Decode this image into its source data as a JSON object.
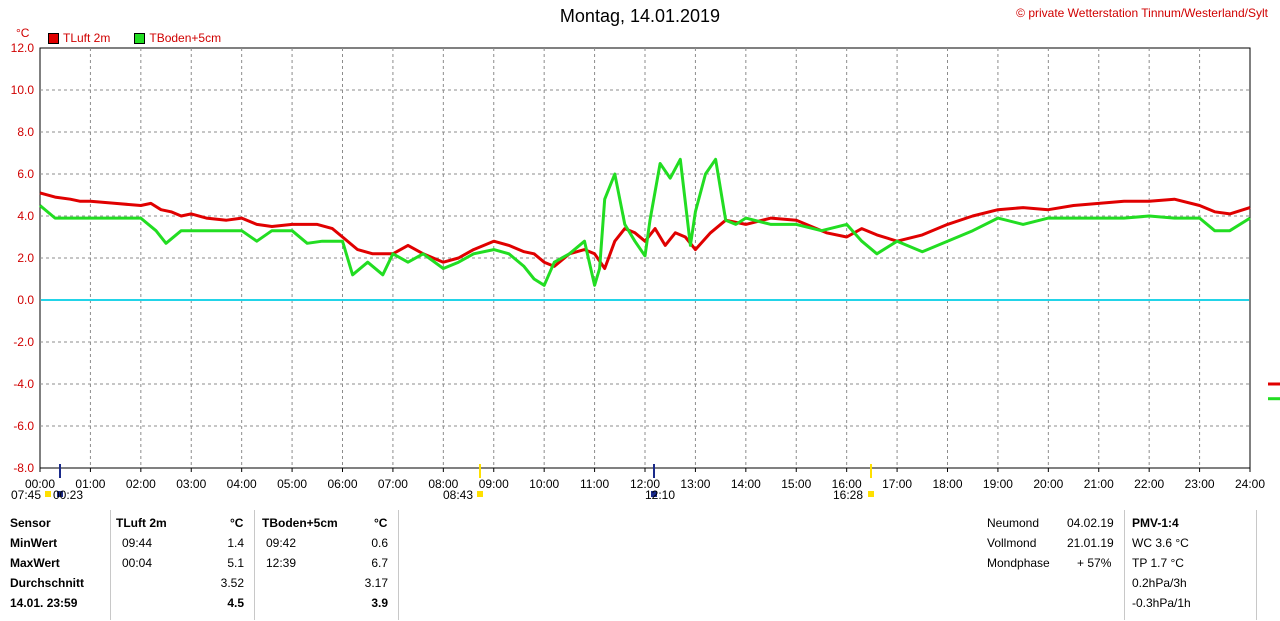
{
  "title": "Montag, 14.01.2019",
  "copyright_symbol": "©",
  "copyright": "private Wetterstation Tinnum/Westerland/Sylt",
  "unit_label": "°C",
  "colors": {
    "tluft": "#e00000",
    "tboden": "#22dd22",
    "zero": "#22d4e8",
    "grid": "#8c8c8c",
    "label": "#d00000"
  },
  "chart_data": {
    "type": "line",
    "xlim": [
      0,
      24
    ],
    "ylim": [
      -8,
      12
    ],
    "grid": true,
    "x_tick_labels": [
      "00:00",
      "01:00",
      "02:00",
      "03:00",
      "04:00",
      "05:00",
      "06:00",
      "07:00",
      "08:00",
      "09:00",
      "10:00",
      "11:00",
      "12:00",
      "13:00",
      "14:00",
      "15:00",
      "16:00",
      "17:00",
      "18:00",
      "19:00",
      "20:00",
      "21:00",
      "22:00",
      "23:00",
      "24:00"
    ],
    "y_tick_labels": [
      "12.0",
      "10.0",
      "8.0",
      "6.0",
      "4.0",
      "2.0",
      "0.0",
      "-2.0",
      "-4.0",
      "-6.0",
      "-8.0"
    ],
    "zero_line": 0.0,
    "series": [
      {
        "name": "TLuft 2m",
        "color": "#e00000",
        "x": [
          0,
          0.3,
          0.6,
          0.8,
          1.0,
          1.5,
          2.0,
          2.2,
          2.4,
          2.6,
          2.8,
          3.0,
          3.3,
          3.7,
          4.0,
          4.3,
          4.6,
          5.0,
          5.5,
          5.8,
          6.0,
          6.3,
          6.6,
          7.0,
          7.3,
          7.6,
          8.0,
          8.3,
          8.6,
          9.0,
          9.3,
          9.6,
          9.8,
          10.0,
          10.2,
          10.5,
          10.8,
          11.0,
          11.2,
          11.4,
          11.6,
          11.8,
          12.0,
          12.2,
          12.4,
          12.6,
          12.8,
          13.0,
          13.3,
          13.6,
          14.0,
          14.5,
          15.0,
          15.3,
          15.6,
          16.0,
          16.3,
          16.6,
          17.0,
          17.5,
          18.0,
          18.5,
          19.0,
          19.5,
          20.0,
          20.5,
          21.0,
          21.5,
          22.0,
          22.5,
          23.0,
          23.3,
          23.6,
          24.0
        ],
        "y": [
          5.1,
          4.9,
          4.8,
          4.7,
          4.7,
          4.6,
          4.5,
          4.6,
          4.3,
          4.2,
          4.0,
          4.1,
          3.9,
          3.8,
          3.9,
          3.6,
          3.5,
          3.6,
          3.6,
          3.4,
          3.0,
          2.4,
          2.2,
          2.2,
          2.6,
          2.2,
          1.8,
          2.0,
          2.4,
          2.8,
          2.6,
          2.3,
          2.2,
          1.8,
          1.6,
          2.2,
          2.4,
          2.2,
          1.5,
          2.8,
          3.4,
          3.2,
          2.8,
          3.4,
          2.6,
          3.2,
          3.0,
          2.4,
          3.2,
          3.8,
          3.6,
          3.9,
          3.8,
          3.5,
          3.2,
          3.0,
          3.4,
          3.1,
          2.8,
          3.1,
          3.6,
          4.0,
          4.3,
          4.4,
          4.3,
          4.5,
          4.6,
          4.7,
          4.7,
          4.8,
          4.5,
          4.2,
          4.1,
          4.4
        ]
      },
      {
        "name": "TBoden+5cm",
        "color": "#22dd22",
        "x": [
          0,
          0.3,
          0.6,
          1.0,
          1.5,
          2.0,
          2.3,
          2.5,
          2.8,
          3.0,
          3.5,
          4.0,
          4.3,
          4.6,
          5.0,
          5.3,
          5.6,
          6.0,
          6.2,
          6.5,
          6.8,
          7.0,
          7.3,
          7.6,
          8.0,
          8.3,
          8.6,
          9.0,
          9.3,
          9.6,
          9.8,
          10.0,
          10.2,
          10.5,
          10.8,
          11.0,
          11.1,
          11.2,
          11.4,
          11.6,
          11.8,
          12.0,
          12.1,
          12.3,
          12.5,
          12.7,
          12.9,
          13.0,
          13.2,
          13.4,
          13.6,
          13.8,
          14.0,
          14.5,
          15.0,
          15.5,
          16.0,
          16.3,
          16.6,
          17.0,
          17.5,
          18.0,
          18.5,
          19.0,
          19.5,
          20.0,
          20.5,
          21.0,
          21.5,
          22.0,
          22.5,
          23.0,
          23.3,
          23.6,
          24.0
        ],
        "y": [
          4.5,
          3.9,
          3.9,
          3.9,
          3.9,
          3.9,
          3.3,
          2.7,
          3.3,
          3.3,
          3.3,
          3.3,
          2.8,
          3.3,
          3.3,
          2.7,
          2.8,
          2.8,
          1.2,
          1.8,
          1.2,
          2.2,
          1.8,
          2.2,
          1.5,
          1.8,
          2.2,
          2.4,
          2.2,
          1.6,
          1.0,
          0.7,
          1.8,
          2.2,
          2.8,
          0.7,
          1.5,
          4.8,
          6.0,
          3.6,
          2.8,
          2.1,
          3.8,
          6.5,
          5.8,
          6.7,
          2.6,
          4.2,
          6.0,
          6.7,
          3.8,
          3.6,
          3.9,
          3.6,
          3.6,
          3.3,
          3.6,
          2.8,
          2.2,
          2.8,
          2.3,
          2.8,
          3.3,
          3.9,
          3.6,
          3.9,
          3.9,
          3.9,
          3.9,
          4.0,
          3.9,
          3.9,
          3.3,
          3.3,
          3.9
        ]
      }
    ],
    "markers": [
      {
        "label": "07:45",
        "color": "#ffe000"
      },
      {
        "label": "00:23",
        "color": "#1a2a8a"
      },
      {
        "label": "08:43",
        "color": "#ffe000"
      },
      {
        "label": "12:10",
        "color": "#1a2a8a"
      },
      {
        "label": "16:28",
        "color": "#ffe000"
      }
    ]
  },
  "table": {
    "header": {
      "sensor": "Sensor",
      "tluft": "TLuft 2m",
      "unit1": "°C",
      "tboden": "TBoden+5cm",
      "unit2": "°C"
    },
    "rows": [
      {
        "label": "MinWert",
        "t1_time": "09:44",
        "t1_val": "1.4",
        "t2_time": "09:42",
        "t2_val": "0.6"
      },
      {
        "label": "MaxWert",
        "t1_time": "00:04",
        "t1_val": "5.1",
        "t2_time": "12:39",
        "t2_val": "6.7"
      },
      {
        "label": "Durchschnitt",
        "t1_time": "",
        "t1_val": "3.52",
        "t2_time": "",
        "t2_val": "3.17"
      },
      {
        "label": "14.01. 23:59",
        "t1_time": "",
        "t1_val": "4.5",
        "t2_time": "",
        "t2_val": "3.9"
      }
    ],
    "moon": [
      {
        "label": "Neumond",
        "value": "04.02.19"
      },
      {
        "label": "Vollmond",
        "value": "21.01.19"
      },
      {
        "label": "Mondphase",
        "value": "+ 57%"
      }
    ],
    "pmv": {
      "title": "PMV-1:4",
      "lines": [
        "WC 3.6 °C",
        "TP 1.7 °C",
        "0.2hPa/3h",
        "-0.3hPa/1h"
      ]
    }
  }
}
